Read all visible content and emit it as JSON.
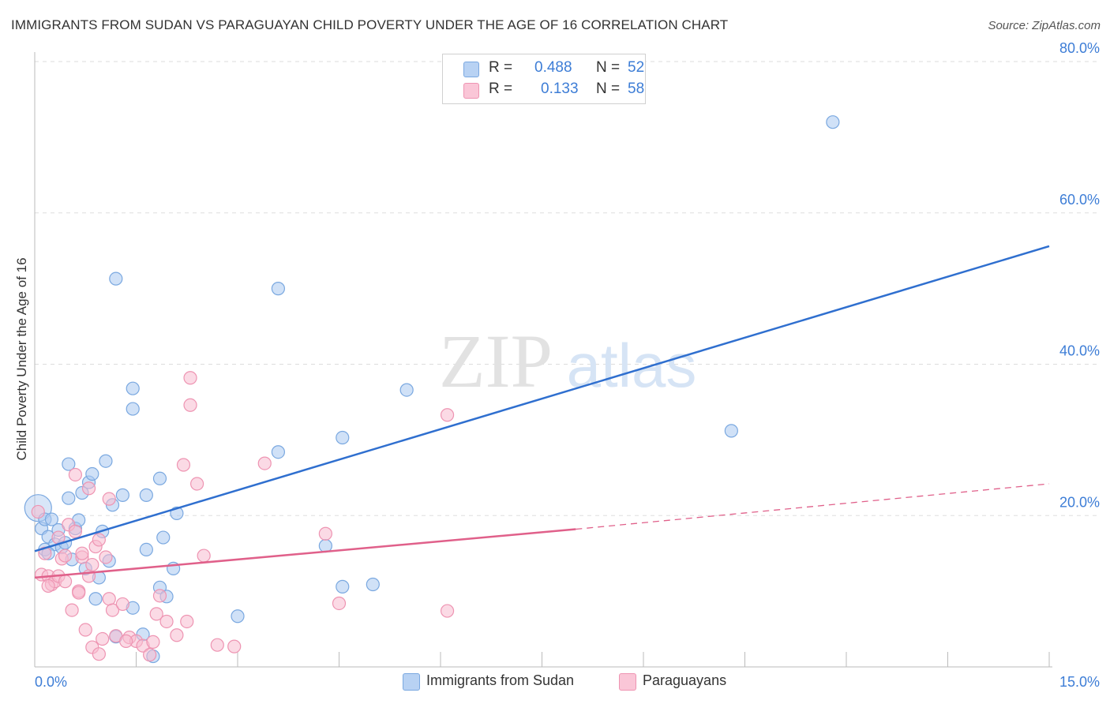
{
  "title": "IMMIGRANTS FROM SUDAN VS PARAGUAYAN CHILD POVERTY UNDER THE AGE OF 16 CORRELATION CHART",
  "source": "Source: ZipAtlas.com",
  "watermark": {
    "zip": "ZIP",
    "atlas": "atlas"
  },
  "legend": {
    "r_label": "R =",
    "n_label": "N =",
    "sudan": {
      "r": "0.488",
      "n": "52"
    },
    "paraguay": {
      "r": "0.133",
      "n": "58"
    }
  },
  "colors": {
    "sudan_fill": "#a9c8f0",
    "sudan_stroke": "#7aa8e0",
    "sudan_line": "#2f6fcf",
    "paraguay_fill": "#f8bcd0",
    "paraguay_stroke": "#ee94b2",
    "paraguay_line": "#e0608a",
    "tick_label": "#3d7dd6",
    "grid": "#dddddd"
  },
  "chart_data": {
    "type": "scatter",
    "title": "IMMIGRANTS FROM SUDAN VS PARAGUAYAN CHILD POVERTY UNDER THE AGE OF 16 CORRELATION CHART",
    "xlabel": "",
    "ylabel": "Child Poverty Under the Age of 16",
    "xlim": [
      0,
      15
    ],
    "ylim": [
      0,
      80
    ],
    "x_tick_labels": [
      "0.0%",
      "15.0%"
    ],
    "y_ticks": [
      20,
      40,
      60,
      80
    ],
    "y_tick_labels": [
      "20.0%",
      "40.0%",
      "60.0%",
      "80.0%"
    ],
    "legend_position": "top-center",
    "series": [
      {
        "name": "Immigrants from Sudan",
        "color": "#a9c8f0",
        "r": 0.488,
        "n": 52,
        "trend": {
          "x": [
            0,
            15
          ],
          "y": [
            15.3,
            55.6
          ]
        },
        "points": [
          [
            0.05,
            21.0
          ],
          [
            0.1,
            18.3
          ],
          [
            0.15,
            19.5
          ],
          [
            0.2,
            17.2
          ],
          [
            0.25,
            19.5
          ],
          [
            0.3,
            16.2
          ],
          [
            0.35,
            18.1
          ],
          [
            0.4,
            15.8
          ],
          [
            0.45,
            16.4
          ],
          [
            0.5,
            22.3
          ],
          [
            0.55,
            14.2
          ],
          [
            0.6,
            18.3
          ],
          [
            0.65,
            19.4
          ],
          [
            0.7,
            23.0
          ],
          [
            0.75,
            13.0
          ],
          [
            0.8,
            24.4
          ],
          [
            0.85,
            25.5
          ],
          [
            0.9,
            9.0
          ],
          [
            0.95,
            11.8
          ],
          [
            1.0,
            17.9
          ],
          [
            1.05,
            27.2
          ],
          [
            1.1,
            14.0
          ],
          [
            1.15,
            21.4
          ],
          [
            1.2,
            4.0
          ],
          [
            1.3,
            22.7
          ],
          [
            1.45,
            7.8
          ],
          [
            1.6,
            4.3
          ],
          [
            1.75,
            1.4
          ],
          [
            1.85,
            10.5
          ],
          [
            1.95,
            9.3
          ],
          [
            2.1,
            20.3
          ],
          [
            1.2,
            51.3
          ],
          [
            1.45,
            36.8
          ],
          [
            1.45,
            34.1
          ],
          [
            1.65,
            22.7
          ],
          [
            1.65,
            15.5
          ],
          [
            1.85,
            24.9
          ],
          [
            1.9,
            17.1
          ],
          [
            2.05,
            13.0
          ],
          [
            3.0,
            6.7
          ],
          [
            3.6,
            28.4
          ],
          [
            3.6,
            50.0
          ],
          [
            4.3,
            16.0
          ],
          [
            4.55,
            30.3
          ],
          [
            4.55,
            10.6
          ],
          [
            5.0,
            10.9
          ],
          [
            5.5,
            36.6
          ],
          [
            10.3,
            31.2
          ],
          [
            11.8,
            72.0
          ],
          [
            0.5,
            26.8
          ],
          [
            0.15,
            15.5
          ],
          [
            0.2,
            15.0
          ]
        ]
      },
      {
        "name": "Paraguayans",
        "color": "#f8bcd0",
        "r": 0.133,
        "n": 58,
        "trend": {
          "x": [
            0,
            8
          ],
          "y": [
            11.8,
            18.2
          ]
        },
        "trend_dashed": {
          "x": [
            8,
            15
          ],
          "y": [
            18.2,
            24.2
          ]
        },
        "points": [
          [
            0.05,
            20.5
          ],
          [
            0.1,
            12.2
          ],
          [
            0.15,
            15.0
          ],
          [
            0.2,
            12.0
          ],
          [
            0.25,
            10.9
          ],
          [
            0.3,
            11.3
          ],
          [
            0.35,
            17.1
          ],
          [
            0.4,
            14.3
          ],
          [
            0.45,
            14.7
          ],
          [
            0.5,
            18.8
          ],
          [
            0.55,
            7.5
          ],
          [
            0.6,
            25.4
          ],
          [
            0.65,
            10.0
          ],
          [
            0.7,
            14.5
          ],
          [
            0.75,
            4.9
          ],
          [
            0.8,
            12.0
          ],
          [
            0.85,
            13.5
          ],
          [
            0.9,
            15.9
          ],
          [
            0.95,
            16.8
          ],
          [
            1.0,
            3.7
          ],
          [
            1.05,
            14.5
          ],
          [
            1.1,
            9.0
          ],
          [
            1.15,
            7.5
          ],
          [
            1.2,
            4.1
          ],
          [
            1.3,
            8.3
          ],
          [
            1.4,
            3.9
          ],
          [
            1.5,
            3.4
          ],
          [
            1.6,
            2.8
          ],
          [
            1.7,
            1.6
          ],
          [
            1.8,
            7.0
          ],
          [
            1.85,
            9.4
          ],
          [
            1.95,
            6.0
          ],
          [
            2.1,
            4.2
          ],
          [
            2.25,
            6.0
          ],
          [
            2.5,
            14.7
          ],
          [
            2.7,
            2.9
          ],
          [
            2.95,
            2.7
          ],
          [
            3.4,
            26.9
          ],
          [
            2.3,
            38.2
          ],
          [
            2.3,
            34.6
          ],
          [
            2.2,
            26.7
          ],
          [
            2.4,
            24.2
          ],
          [
            1.1,
            22.2
          ],
          [
            0.8,
            23.6
          ],
          [
            4.3,
            17.6
          ],
          [
            4.5,
            8.4
          ],
          [
            6.1,
            33.3
          ],
          [
            6.1,
            7.4
          ],
          [
            0.6,
            17.9
          ],
          [
            0.35,
            12.0
          ],
          [
            0.2,
            10.7
          ],
          [
            0.7,
            15.0
          ],
          [
            0.65,
            9.8
          ],
          [
            0.85,
            2.6
          ],
          [
            0.95,
            1.7
          ],
          [
            1.35,
            3.4
          ],
          [
            1.75,
            3.3
          ],
          [
            0.45,
            11.3
          ]
        ]
      }
    ]
  }
}
